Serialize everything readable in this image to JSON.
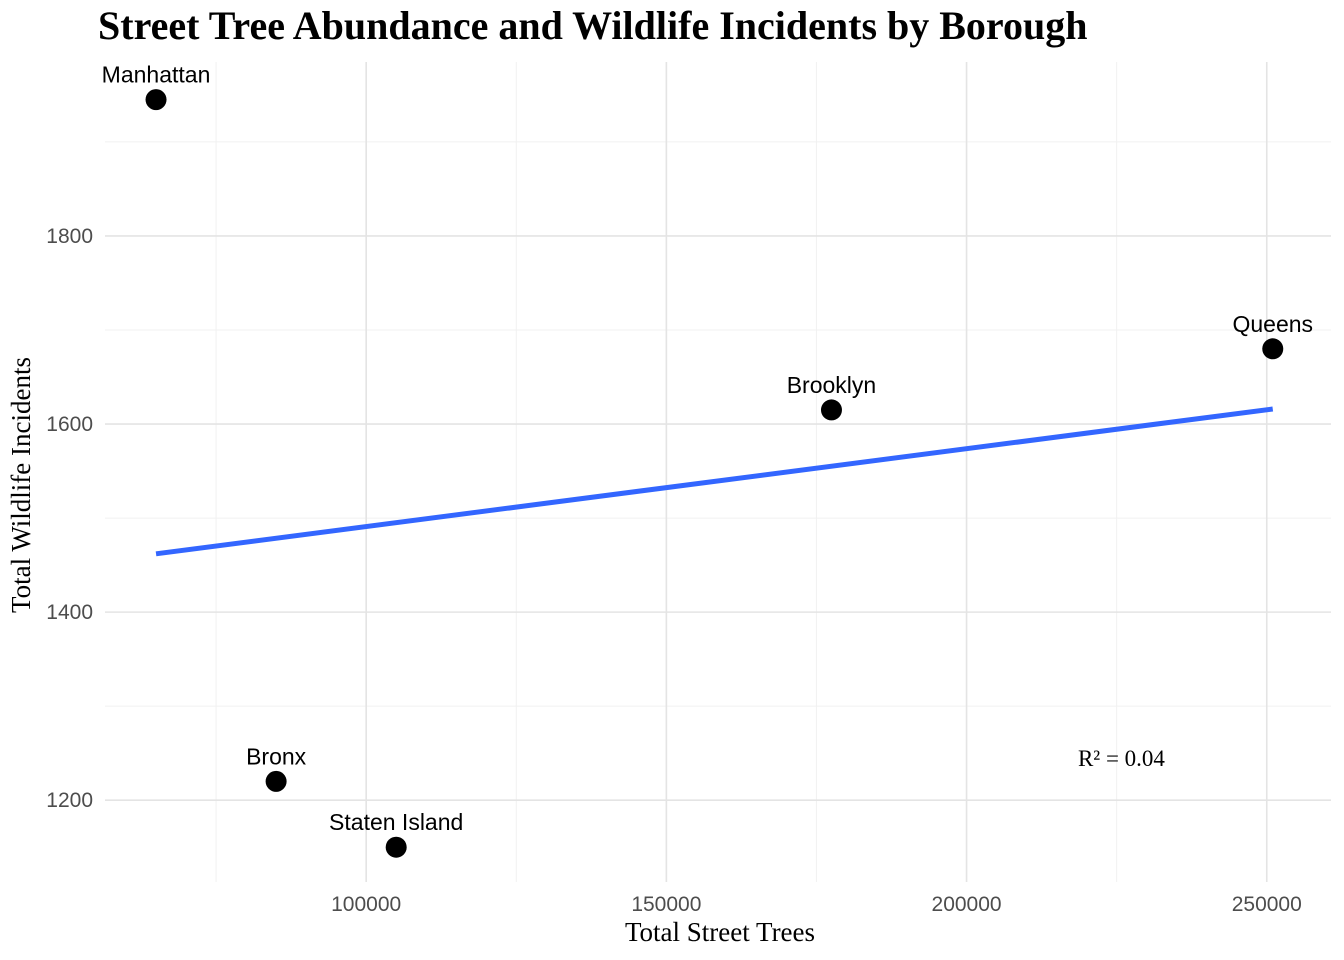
{
  "title": "Street Tree Abundance and Wildlife Incidents by Borough",
  "colors": {
    "background": "#FFFFFF",
    "point": "#000000",
    "trend": "#3366FF",
    "grid_major": "#E4E4E4",
    "grid_minor": "#F1F1F1",
    "tick_text": "#4D4D4D",
    "label_text": "#000000"
  },
  "chart_data": {
    "type": "scatter",
    "title": "Street Tree Abundance and Wildlife Incidents by Borough",
    "xlabel": "Total Street Trees",
    "ylabel": "Total Wildlife Incidents",
    "xlim": [
      56500,
      260700
    ],
    "ylim": [
      1113,
      1985
    ],
    "grid": true,
    "legend": false,
    "x_major_ticks": [
      100000,
      150000,
      200000,
      250000
    ],
    "x_tick_labels": [
      "100000",
      "150000",
      "200000",
      "250000"
    ],
    "x_minor_ticks": [
      75000,
      125000,
      175000,
      225000
    ],
    "y_major_ticks": [
      1200,
      1400,
      1600,
      1800
    ],
    "y_tick_labels": [
      "1200",
      "1400",
      "1600",
      "1800"
    ],
    "y_minor_ticks": [
      1300,
      1500,
      1700,
      1900
    ],
    "points": [
      {
        "label": "Manhattan",
        "x": 65000,
        "y": 1945
      },
      {
        "label": "Bronx",
        "x": 85000,
        "y": 1220
      },
      {
        "label": "Staten Island",
        "x": 105000,
        "y": 1150
      },
      {
        "label": "Brooklyn",
        "x": 177500,
        "y": 1615
      },
      {
        "label": "Queens",
        "x": 251000,
        "y": 1680
      }
    ],
    "trendline": {
      "x1": 65000,
      "y1": 1462,
      "x2": 251000,
      "y2": 1616
    },
    "annotation": {
      "text": "R² = 0.04",
      "x": 225800,
      "y": 1245
    }
  }
}
